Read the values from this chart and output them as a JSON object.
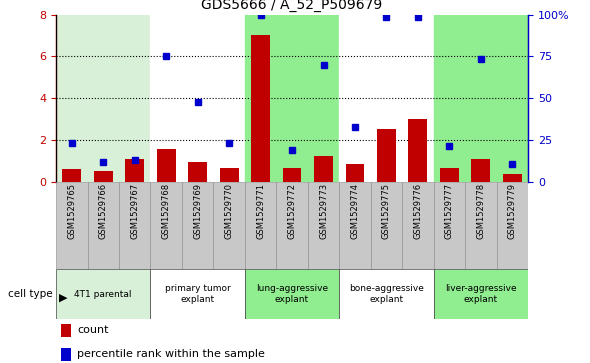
{
  "title": "GDS5666 / A_52_P509679",
  "samples": [
    "GSM1529765",
    "GSM1529766",
    "GSM1529767",
    "GSM1529768",
    "GSM1529769",
    "GSM1529770",
    "GSM1529771",
    "GSM1529772",
    "GSM1529773",
    "GSM1529774",
    "GSM1529775",
    "GSM1529776",
    "GSM1529777",
    "GSM1529778",
    "GSM1529779"
  ],
  "counts": [
    0.6,
    0.5,
    1.1,
    1.55,
    0.95,
    0.65,
    7.0,
    0.65,
    1.2,
    0.85,
    2.5,
    3.0,
    0.65,
    1.1,
    0.35
  ],
  "percentile_ranks": [
    1.85,
    0.95,
    1.05,
    6.0,
    3.8,
    1.85,
    8.0,
    1.5,
    5.6,
    2.6,
    7.9,
    7.9,
    1.7,
    5.85,
    0.85
  ],
  "bar_color": "#C00000",
  "dot_color": "#0000CC",
  "sample_groups": [
    0,
    0,
    0,
    1,
    1,
    1,
    2,
    2,
    2,
    3,
    3,
    3,
    4,
    4,
    4
  ],
  "group_colors_plot": [
    "#d8f0d8",
    "#ffffff",
    "#90ee90",
    "#ffffff",
    "#90ee90"
  ],
  "cell_groups": [
    {
      "label": "4T1 parental",
      "start": 0,
      "end": 3,
      "color": "#d8f0d8"
    },
    {
      "label": "primary tumor\nexplant",
      "start": 3,
      "end": 6,
      "color": "#ffffff"
    },
    {
      "label": "lung-aggressive\nexplant",
      "start": 6,
      "end": 9,
      "color": "#90ee90"
    },
    {
      "label": "bone-aggressive\nexplant",
      "start": 9,
      "end": 12,
      "color": "#ffffff"
    },
    {
      "label": "liver-aggressive\nexplant",
      "start": 12,
      "end": 15,
      "color": "#90ee90"
    }
  ],
  "cell_type_label": "cell type",
  "legend_count_label": "count",
  "legend_percentile_label": "percentile rank within the sample",
  "tick_bg_color": "#c8c8c8",
  "yticks_left": [
    0,
    2,
    4,
    6,
    8
  ],
  "yticks_right_vals": [
    0,
    2,
    4,
    6,
    8
  ],
  "yticks_right_labels": [
    "0",
    "25",
    "50",
    "75",
    "100%"
  ]
}
